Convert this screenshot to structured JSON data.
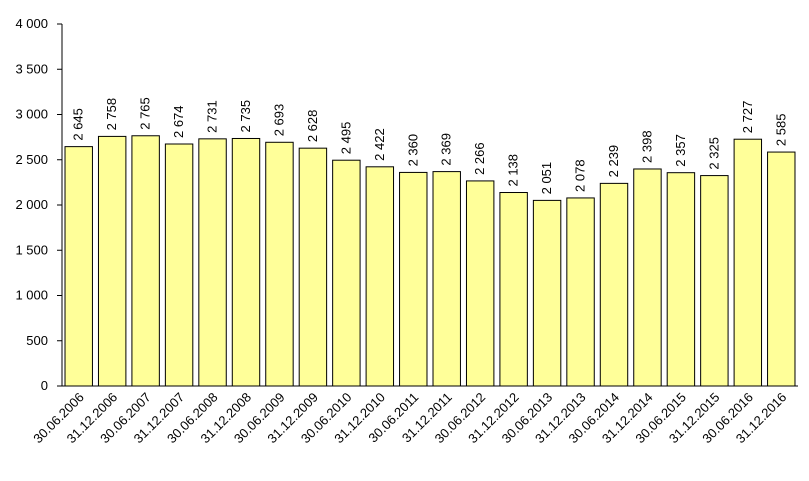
{
  "chart_data": {
    "type": "bar",
    "categories": [
      "30.06.2006",
      "31.12.2006",
      "30.06.2007",
      "31.12.2007",
      "30.06.2008",
      "31.12.2008",
      "30.06.2009",
      "31.12.2009",
      "30.06.2010",
      "31.12.2010",
      "30.06.2011",
      "31.12.2011",
      "30.06.2012",
      "31.12.2012",
      "30.06.2013",
      "31.12.2013",
      "30.06.2014",
      "31.12.2014",
      "30.06.2015",
      "31.12.2015",
      "30.06.2016",
      "31.12.2016"
    ],
    "values": [
      2645,
      2758,
      2765,
      2674,
      2731,
      2735,
      2693,
      2628,
      2495,
      2422,
      2360,
      2369,
      2266,
      2138,
      2051,
      2078,
      2239,
      2398,
      2357,
      2325,
      2727,
      2585
    ],
    "value_labels": [
      "2 645",
      "2 758",
      "2 765",
      "2 674",
      "2 731",
      "2 735",
      "2 693",
      "2 628",
      "2 495",
      "2 422",
      "2 360",
      "2 369",
      "2 266",
      "2 138",
      "2 051",
      "2 078",
      "2 239",
      "2 398",
      "2 357",
      "2 325",
      "2 727",
      "2 585"
    ],
    "color": "#ffff99",
    "ylim": [
      0,
      4000
    ],
    "yticks": [
      0,
      500,
      {
        "value": 1000,
        "label": "1 000"
      },
      {
        "value": 1500,
        "label": "1 500"
      },
      {
        "value": 2000,
        "label": "2 000"
      },
      {
        "value": 2500,
        "label": "2 500"
      },
      {
        "value": 3000,
        "label": "3 000"
      },
      {
        "value": 3500,
        "label": "3 500"
      },
      {
        "value": 4000,
        "label": "4 000"
      }
    ],
    "grid": false
  }
}
